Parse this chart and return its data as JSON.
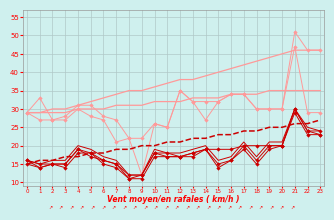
{
  "x": [
    0,
    1,
    2,
    3,
    4,
    5,
    6,
    7,
    8,
    9,
    10,
    11,
    12,
    13,
    14,
    15,
    16,
    17,
    18,
    19,
    20,
    21,
    22,
    23
  ],
  "gust_line1": [
    29,
    27,
    27,
    28,
    31,
    31,
    28,
    27,
    22,
    22,
    26,
    25,
    35,
    32,
    32,
    32,
    34,
    34,
    30,
    30,
    30,
    51,
    46,
    46
  ],
  "gust_line2": [
    29,
    33,
    27,
    27,
    30,
    28,
    27,
    21,
    22,
    12,
    26,
    25,
    35,
    32,
    27,
    32,
    34,
    34,
    30,
    30,
    30,
    47,
    29,
    29
  ],
  "trend_upper": [
    29,
    29,
    30,
    30,
    31,
    32,
    33,
    34,
    35,
    35,
    36,
    37,
    38,
    38,
    39,
    40,
    41,
    42,
    43,
    44,
    45,
    46,
    46,
    46
  ],
  "trend_lower": [
    29,
    29,
    29,
    29,
    30,
    30,
    30,
    31,
    31,
    31,
    32,
    32,
    32,
    33,
    33,
    33,
    34,
    34,
    34,
    35,
    35,
    35,
    35,
    35
  ],
  "mean_line1": [
    16,
    15,
    15,
    15,
    19,
    18,
    16,
    15,
    11,
    12,
    18,
    17,
    17,
    18,
    19,
    19,
    19,
    20,
    20,
    20,
    20,
    30,
    24,
    23
  ],
  "mean_line2": [
    16,
    14,
    15,
    14,
    18,
    18,
    15,
    14,
    11,
    11,
    17,
    17,
    17,
    17,
    19,
    14,
    16,
    19,
    15,
    19,
    20,
    29,
    23,
    23
  ],
  "mean_line3": [
    15,
    14,
    15,
    15,
    19,
    17,
    16,
    15,
    12,
    12,
    18,
    18,
    17,
    18,
    19,
    15,
    16,
    20,
    16,
    20,
    20,
    30,
    24,
    24
  ],
  "mean_line4": [
    16,
    15,
    16,
    16,
    20,
    19,
    17,
    16,
    12,
    12,
    19,
    18,
    18,
    19,
    20,
    16,
    17,
    21,
    17,
    21,
    21,
    30,
    25,
    24
  ],
  "dashed_line": [
    15,
    16,
    16,
    17,
    17,
    18,
    18,
    19,
    19,
    20,
    20,
    21,
    21,
    22,
    22,
    23,
    23,
    24,
    24,
    25,
    25,
    26,
    26,
    27
  ],
  "ylim": [
    9,
    57
  ],
  "yticks": [
    10,
    15,
    20,
    25,
    30,
    35,
    40,
    45,
    50,
    55
  ],
  "xlim": [
    -0.3,
    23.3
  ],
  "bg_color": "#cff0ee",
  "grid_color": "#b0c8c8",
  "pink": "#ff9999",
  "darkred": "#cc0000",
  "xlabel": "Vent moyen/en rafales ( km/h )"
}
